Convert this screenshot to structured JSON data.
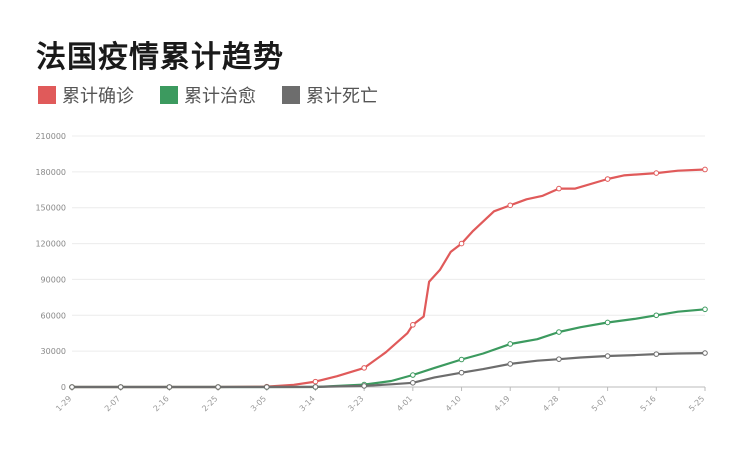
{
  "chart_data": {
    "type": "line",
    "title": "法国疫情累计趋势",
    "legend_position": "top-left",
    "grid": true,
    "ylim": [
      0,
      210000
    ],
    "y_ticks": [
      0,
      30000,
      60000,
      90000,
      120000,
      150000,
      180000,
      210000
    ],
    "x_ticks": [
      "1-29",
      "2-07",
      "2-16",
      "2-25",
      "3-05",
      "3-14",
      "3-23",
      "4-01",
      "4-10",
      "4-19",
      "4-28",
      "5-07",
      "5-16",
      "5-25"
    ],
    "series": [
      {
        "name": "累计确诊",
        "color": "#e05a5a",
        "points": [
          [
            "1-29",
            0
          ],
          [
            "2-07",
            0
          ],
          [
            "2-16",
            0
          ],
          [
            "2-25",
            0
          ],
          [
            "3-05",
            300
          ],
          [
            "3-10",
            1800
          ],
          [
            "3-14",
            4500
          ],
          [
            "3-18",
            9000
          ],
          [
            "3-23",
            16000
          ],
          [
            "3-27",
            29000
          ],
          [
            "3-31",
            45000
          ],
          [
            "4-01",
            52000
          ],
          [
            "4-03",
            59000
          ],
          [
            "4-04",
            88000
          ],
          [
            "4-06",
            98000
          ],
          [
            "4-08",
            113000
          ],
          [
            "4-10",
            120000
          ],
          [
            "4-12",
            130000
          ],
          [
            "4-16",
            147000
          ],
          [
            "4-19",
            152000
          ],
          [
            "4-22",
            157000
          ],
          [
            "4-25",
            160000
          ],
          [
            "4-28",
            166000
          ],
          [
            "5-01",
            166000
          ],
          [
            "5-07",
            174000
          ],
          [
            "5-10",
            177000
          ],
          [
            "5-16",
            179000
          ],
          [
            "5-20",
            181000
          ],
          [
            "5-25",
            182000
          ]
        ]
      },
      {
        "name": "累计治愈",
        "color": "#3c9a5f",
        "points": [
          [
            "1-29",
            0
          ],
          [
            "3-05",
            0
          ],
          [
            "3-14",
            0
          ],
          [
            "3-23",
            2000
          ],
          [
            "3-28",
            5000
          ],
          [
            "4-01",
            10000
          ],
          [
            "4-05",
            16000
          ],
          [
            "4-10",
            23000
          ],
          [
            "4-14",
            28000
          ],
          [
            "4-19",
            36000
          ],
          [
            "4-24",
            40000
          ],
          [
            "4-28",
            46000
          ],
          [
            "5-02",
            50000
          ],
          [
            "5-07",
            54000
          ],
          [
            "5-12",
            57000
          ],
          [
            "5-16",
            60000
          ],
          [
            "5-20",
            63000
          ],
          [
            "5-25",
            65000
          ]
        ]
      },
      {
        "name": "累计死亡",
        "color": "#6d6d6d",
        "points": [
          [
            "1-29",
            0
          ],
          [
            "3-05",
            0
          ],
          [
            "3-14",
            100
          ],
          [
            "3-23",
            900
          ],
          [
            "3-28",
            2300
          ],
          [
            "4-01",
            3500
          ],
          [
            "4-05",
            8000
          ],
          [
            "4-10",
            12000
          ],
          [
            "4-14",
            15000
          ],
          [
            "4-19",
            19300
          ],
          [
            "4-24",
            22000
          ],
          [
            "4-28",
            23300
          ],
          [
            "5-02",
            24700
          ],
          [
            "5-07",
            25900
          ],
          [
            "5-12",
            26700
          ],
          [
            "5-16",
            27500
          ],
          [
            "5-20",
            28000
          ],
          [
            "5-25",
            28400
          ]
        ]
      }
    ]
  }
}
